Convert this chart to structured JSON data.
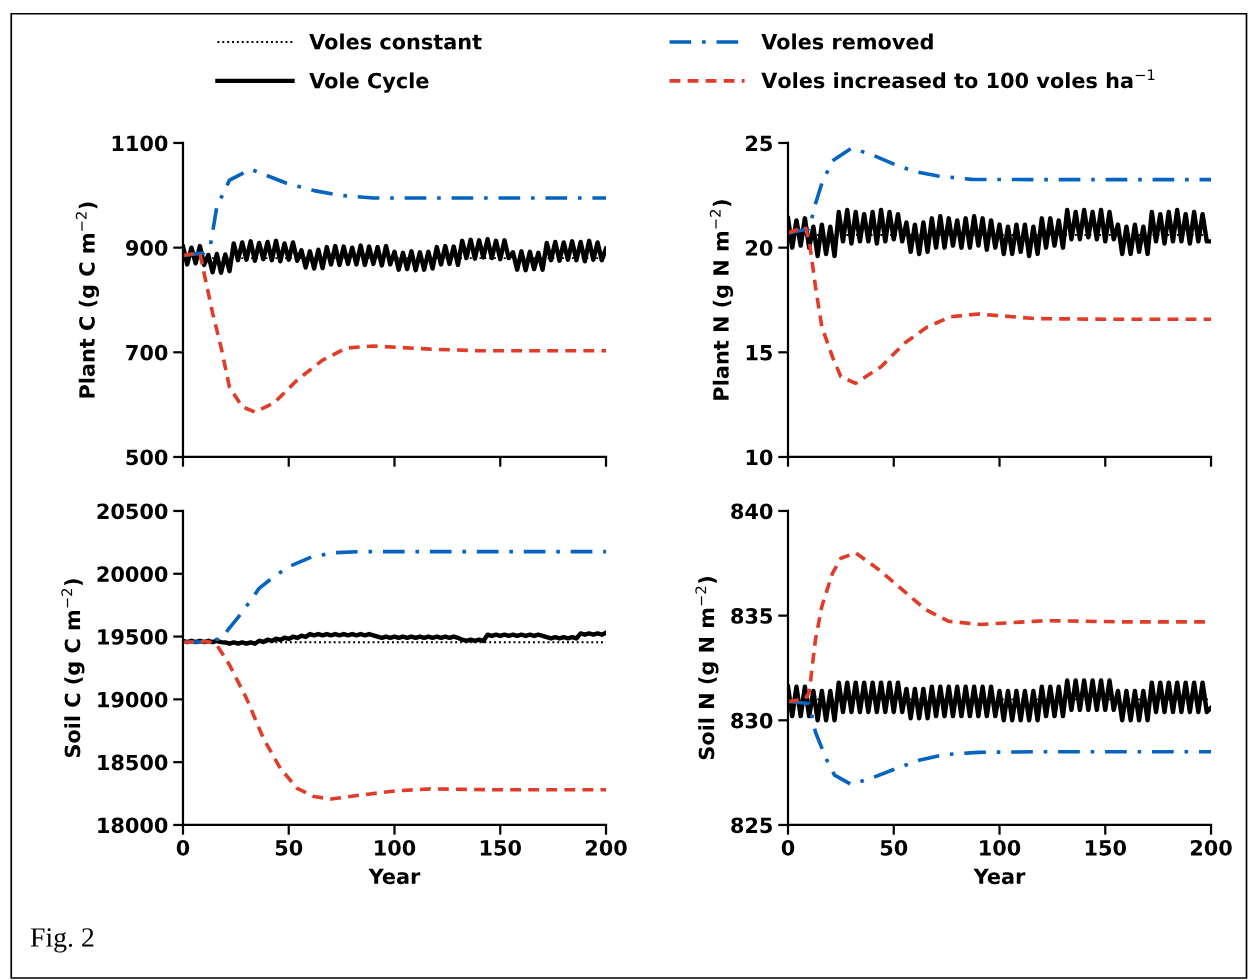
{
  "chart_data": [
    {
      "type": "line",
      "ylabel": "Plant C (g C m$^{−2}$)",
      "xlim": [
        0,
        200
      ],
      "xticks": [
        0,
        50,
        100,
        150,
        200
      ],
      "ylim": [
        500,
        1100
      ],
      "yticks": [
        500,
        700,
        900,
        1100
      ],
      "tick_labels": "y",
      "legend": "top",
      "x": [
        0,
        2,
        4,
        6,
        8,
        10,
        12,
        14,
        16,
        18,
        20,
        22,
        24,
        26,
        28,
        30,
        32,
        34,
        36,
        38,
        40,
        42,
        44,
        46,
        48,
        50,
        52,
        54,
        56,
        58,
        60,
        62,
        64,
        66,
        68,
        70,
        72,
        74,
        76,
        78,
        80,
        82,
        84,
        86,
        88,
        90,
        92,
        94,
        96,
        98,
        100,
        102,
        104,
        106,
        108,
        110,
        112,
        114,
        116,
        118,
        120,
        122,
        124,
        126,
        128,
        130,
        132,
        134,
        136,
        138,
        140,
        142,
        144,
        146,
        148,
        150,
        152,
        154,
        156,
        158,
        160,
        162,
        164,
        166,
        168,
        170,
        172,
        174,
        176,
        178,
        180,
        182,
        184,
        186,
        188,
        190,
        192,
        194,
        196,
        198,
        200
      ],
      "series": [
        {
          "name": "Voles constant",
          "color": "#000000",
          "line_style": "dotted",
          "x": [
            0,
            200
          ],
          "values": [
            880,
            880
          ]
        },
        {
          "name": "Vole Cycle",
          "color": "#000000",
          "line_style": "solid",
          "values": [
            902,
            868,
            900,
            870,
            903,
            867,
            886,
            853,
            888,
            852,
            887,
            855,
            908,
            876,
            910,
            877,
            912,
            875,
            909,
            878,
            911,
            876,
            913,
            874,
            908,
            877,
            910,
            875,
            895,
            862,
            893,
            860,
            896,
            861,
            901,
            868,
            903,
            867,
            902,
            869,
            900,
            868,
            904,
            867,
            902,
            869,
            901,
            866,
            903,
            868,
            892,
            858,
            890,
            859,
            893,
            857,
            891,
            858,
            892,
            860,
            901,
            868,
            903,
            869,
            902,
            867,
            913,
            880,
            915,
            879,
            914,
            881,
            916,
            880,
            913,
            878,
            914,
            880,
            891,
            858,
            893,
            857,
            892,
            859,
            890,
            858,
            909,
            876,
            911,
            875,
            910,
            877,
            912,
            876,
            911,
            874,
            913,
            877,
            910,
            876,
            898
          ]
        },
        {
          "name": "Voles removed",
          "color": "#0563c1",
          "line_style": "dashdot",
          "x": [
            0,
            10,
            13,
            16,
            22,
            32,
            49,
            62,
            74,
            90,
            120,
            160,
            200
          ],
          "values": [
            885,
            890,
            905,
            978,
            1029,
            1050,
            1023,
            1009,
            1000,
            995,
            995,
            995,
            995
          ]
        },
        {
          "name": "Voles increased to 100 voles ha$^{−1}$",
          "color": "#e03c28",
          "line_style": "dashed",
          "x": [
            0,
            8,
            10,
            14,
            18,
            22,
            28,
            34,
            43,
            54,
            66,
            77,
            90,
            117,
            140,
            170,
            200
          ],
          "values": [
            885,
            890,
            851,
            775,
            710,
            633,
            596,
            586,
            603,
            647,
            685,
            708,
            712,
            706,
            703,
            703,
            703
          ]
        }
      ]
    },
    {
      "type": "line",
      "ylabel": "Plant N (g N m$^{−2}$)",
      "xlim": [
        0,
        200
      ],
      "xticks": [
        0,
        50,
        100,
        150,
        200
      ],
      "ylim": [
        10,
        25
      ],
      "yticks": [
        10,
        15,
        20,
        25
      ],
      "tick_labels": "y",
      "x": [
        0,
        2,
        4,
        6,
        8,
        10,
        12,
        14,
        16,
        18,
        20,
        22,
        24,
        26,
        28,
        30,
        32,
        34,
        36,
        38,
        40,
        42,
        44,
        46,
        48,
        50,
        52,
        54,
        56,
        58,
        60,
        62,
        64,
        66,
        68,
        70,
        72,
        74,
        76,
        78,
        80,
        82,
        84,
        86,
        88,
        90,
        92,
        94,
        96,
        98,
        100,
        102,
        104,
        106,
        108,
        110,
        112,
        114,
        116,
        118,
        120,
        122,
        124,
        126,
        128,
        130,
        132,
        134,
        136,
        138,
        140,
        142,
        144,
        146,
        148,
        150,
        152,
        154,
        156,
        158,
        160,
        162,
        164,
        166,
        168,
        170,
        172,
        174,
        176,
        178,
        180,
        182,
        184,
        186,
        188,
        190,
        192,
        194,
        196,
        198,
        200
      ],
      "series": [
        {
          "color": "#000000",
          "line_style": "dotted",
          "x": [
            0,
            200
          ],
          "values": [
            20.6,
            20.6
          ]
        },
        {
          "color": "#000000",
          "line_style": "solid",
          "values": [
            21.4,
            20.0,
            21.3,
            20.1,
            21.4,
            20.0,
            21.0,
            19.6,
            21.1,
            19.7,
            21.0,
            19.6,
            21.7,
            20.3,
            21.8,
            20.2,
            21.7,
            20.3,
            21.6,
            20.3,
            21.7,
            20.2,
            21.8,
            20.3,
            21.7,
            20.4,
            21.6,
            20.3,
            21.2,
            19.8,
            21.1,
            19.7,
            21.2,
            19.8,
            21.4,
            20.0,
            21.5,
            20.0,
            21.4,
            20.1,
            21.3,
            20.0,
            21.4,
            20.0,
            21.5,
            20.1,
            21.4,
            19.9,
            21.3,
            20.0,
            21.1,
            19.7,
            21.0,
            19.7,
            21.1,
            19.8,
            21.1,
            19.6,
            21.0,
            19.7,
            21.4,
            20.0,
            21.4,
            20.1,
            21.3,
            20.0,
            21.8,
            20.4,
            21.7,
            20.4,
            21.8,
            20.5,
            21.7,
            20.4,
            21.8,
            20.3,
            21.7,
            20.4,
            21.1,
            19.7,
            21.0,
            19.7,
            21.1,
            19.8,
            21.0,
            19.7,
            21.7,
            20.3,
            21.6,
            20.2,
            21.7,
            20.3,
            21.8,
            20.3,
            21.6,
            20.2,
            21.7,
            20.3,
            21.6,
            20.3,
            20.3
          ]
        },
        {
          "color": "#0563c1",
          "line_style": "dashdot",
          "x": [
            0,
            10,
            13,
            16,
            21,
            30,
            39,
            51,
            60,
            71,
            87,
            120,
            160,
            200
          ],
          "values": [
            20.7,
            20.9,
            22.1,
            23.07,
            24.15,
            24.75,
            24.47,
            23.95,
            23.63,
            23.42,
            23.26,
            23.25,
            23.25,
            23.25
          ]
        },
        {
          "color": "#e03c28",
          "line_style": "dashed",
          "x": [
            0,
            8,
            10,
            13,
            16,
            21,
            25,
            32,
            44,
            55,
            66,
            77,
            90,
            117,
            150,
            200
          ],
          "values": [
            20.7,
            21.0,
            20.37,
            18.13,
            16.22,
            14.79,
            13.83,
            13.52,
            14.31,
            15.43,
            16.22,
            16.7,
            16.83,
            16.61,
            16.58,
            16.58
          ]
        }
      ]
    },
    {
      "type": "line",
      "ylabel": "Soil C (g C m$^{−2}$)",
      "xlabel": "Year",
      "xlim": [
        0,
        200
      ],
      "xticks": [
        0,
        50,
        100,
        150,
        200
      ],
      "ylim": [
        18000,
        20500
      ],
      "yticks": [
        18000,
        18500,
        19000,
        19500,
        20000,
        20500
      ],
      "annotations": [
        "Fig. 2"
      ],
      "x": [
        0,
        2,
        4,
        6,
        8,
        10,
        12,
        14,
        16,
        18,
        20,
        22,
        24,
        26,
        28,
        30,
        32,
        34,
        36,
        38,
        40,
        42,
        44,
        46,
        48,
        50,
        52,
        54,
        56,
        58,
        60,
        62,
        64,
        66,
        68,
        70,
        72,
        74,
        76,
        78,
        80,
        82,
        84,
        86,
        88,
        90,
        92,
        94,
        96,
        98,
        100,
        102,
        104,
        106,
        108,
        110,
        112,
        114,
        116,
        118,
        120,
        122,
        124,
        126,
        128,
        130,
        132,
        134,
        136,
        138,
        140,
        142,
        144,
        146,
        148,
        150,
        152,
        154,
        156,
        158,
        160,
        162,
        164,
        166,
        168,
        170,
        172,
        174,
        176,
        178,
        180,
        182,
        184,
        186,
        188,
        190,
        192,
        194,
        196,
        198,
        200
      ],
      "series": [
        {
          "color": "#000000",
          "line_style": "dotted",
          "x": [
            0,
            200
          ],
          "values": [
            19455,
            19455
          ]
        },
        {
          "color": "#000000",
          "line_style": "solid",
          "values": [
            19466,
            19456,
            19466,
            19456,
            19466,
            19456,
            19466,
            19456,
            19466,
            19456,
            19453,
            19443,
            19453,
            19443,
            19453,
            19443,
            19453,
            19443,
            19467,
            19457,
            19475,
            19465,
            19483,
            19473,
            19491,
            19481,
            19499,
            19489,
            19507,
            19497,
            19520,
            19510,
            19520,
            19510,
            19520,
            19510,
            19520,
            19510,
            19520,
            19510,
            19520,
            19510,
            19520,
            19510,
            19520,
            19510,
            19500,
            19490,
            19500,
            19490,
            19500,
            19490,
            19500,
            19490,
            19500,
            19490,
            19500,
            19490,
            19500,
            19490,
            19500,
            19490,
            19500,
            19490,
            19500,
            19490,
            19475,
            19465,
            19475,
            19465,
            19475,
            19465,
            19515,
            19505,
            19515,
            19505,
            19515,
            19505,
            19515,
            19505,
            19515,
            19505,
            19515,
            19505,
            19515,
            19505,
            19495,
            19485,
            19495,
            19485,
            19495,
            19485,
            19495,
            19485,
            19525,
            19515,
            19525,
            19515,
            19525,
            19515,
            19530
          ]
        },
        {
          "color": "#0563c1",
          "line_style": "dashdot",
          "x": [
            0,
            12,
            18,
            28,
            36,
            42,
            50,
            61,
            72,
            83,
            120,
            160,
            200
          ],
          "values": [
            19455,
            19460,
            19486,
            19693,
            19884,
            19964,
            20057,
            20136,
            20168,
            20176,
            20176,
            20176,
            20176
          ]
        },
        {
          "color": "#e03c28",
          "line_style": "dashed",
          "x": [
            0,
            12,
            16,
            22,
            30,
            38,
            46,
            54,
            62,
            70,
            85,
            101,
            117,
            150,
            200
          ],
          "values": [
            19455,
            19460,
            19433,
            19274,
            19009,
            18690,
            18451,
            18292,
            18226,
            18207,
            18240,
            18272,
            18287,
            18280,
            18280
          ]
        }
      ]
    },
    {
      "type": "line",
      "ylabel": "Soil N (g N m$^{−2}$)",
      "xlabel": "Year",
      "xlim": [
        0,
        200
      ],
      "xticks": [
        0,
        50,
        100,
        150,
        200
      ],
      "ylim": [
        825,
        840
      ],
      "yticks": [
        825,
        830,
        835,
        840
      ],
      "x": [
        0,
        2,
        4,
        6,
        8,
        10,
        12,
        14,
        16,
        18,
        20,
        22,
        24,
        26,
        28,
        30,
        32,
        34,
        36,
        38,
        40,
        42,
        44,
        46,
        48,
        50,
        52,
        54,
        56,
        58,
        60,
        62,
        64,
        66,
        68,
        70,
        72,
        74,
        76,
        78,
        80,
        82,
        84,
        86,
        88,
        90,
        92,
        94,
        96,
        98,
        100,
        102,
        104,
        106,
        108,
        110,
        112,
        114,
        116,
        118,
        120,
        122,
        124,
        126,
        128,
        130,
        132,
        134,
        136,
        138,
        140,
        142,
        144,
        146,
        148,
        150,
        152,
        154,
        156,
        158,
        160,
        162,
        164,
        166,
        168,
        170,
        172,
        174,
        176,
        178,
        180,
        182,
        184,
        186,
        188,
        190,
        192,
        194,
        196,
        198,
        200
      ],
      "series": [
        {
          "color": "#000000",
          "line_style": "dotted",
          "x": [
            0,
            200
          ],
          "values": [
            831.0,
            831.0
          ]
        },
        {
          "color": "#000000",
          "line_style": "solid",
          "values": [
            831.6,
            830.2,
            831.6,
            830.2,
            831.6,
            830.2,
            831.4,
            830.0,
            831.4,
            830.0,
            831.4,
            830.0,
            831.8,
            830.4,
            831.8,
            830.4,
            831.8,
            830.4,
            831.8,
            830.4,
            831.8,
            830.4,
            831.8,
            830.4,
            831.8,
            830.4,
            831.8,
            830.4,
            831.5,
            830.1,
            831.5,
            830.1,
            831.5,
            830.1,
            831.6,
            830.2,
            831.6,
            830.2,
            831.6,
            830.2,
            831.6,
            830.2,
            831.6,
            830.2,
            831.6,
            830.2,
            831.6,
            830.2,
            831.6,
            830.2,
            831.4,
            830.0,
            831.4,
            830.0,
            831.4,
            830.0,
            831.4,
            830.0,
            831.4,
            830.0,
            831.6,
            830.2,
            831.6,
            830.2,
            831.6,
            830.2,
            831.9,
            830.5,
            831.9,
            830.5,
            831.9,
            830.5,
            831.9,
            830.5,
            831.9,
            830.5,
            831.9,
            830.5,
            831.4,
            830.0,
            831.4,
            830.0,
            831.4,
            830.0,
            831.4,
            830.0,
            831.8,
            830.4,
            831.8,
            830.4,
            831.8,
            830.4,
            831.8,
            830.4,
            831.8,
            830.4,
            831.8,
            830.4,
            831.8,
            830.4,
            830.6
          ]
        },
        {
          "color": "#0563c1",
          "line_style": "dashdot",
          "x": [
            0,
            10,
            13,
            18,
            22,
            30,
            41,
            51,
            62,
            74,
            90,
            120,
            160,
            200
          ],
          "values": [
            830.9,
            830.8,
            829.43,
            828.17,
            827.38,
            826.93,
            827.3,
            827.69,
            828.09,
            828.36,
            828.47,
            828.5,
            828.5,
            828.5
          ]
        },
        {
          "color": "#e03c28",
          "line_style": "dashed",
          "x": [
            0,
            8,
            10,
            13,
            16,
            21,
            25,
            32,
            43,
            54,
            65,
            76,
            91,
            122,
            160,
            200
          ],
          "values": [
            830.9,
            831.0,
            831.33,
            833.86,
            835.44,
            837.02,
            837.74,
            838.0,
            837.19,
            836.24,
            835.29,
            834.73,
            834.58,
            834.76,
            834.7,
            834.7
          ]
        }
      ]
    }
  ]
}
